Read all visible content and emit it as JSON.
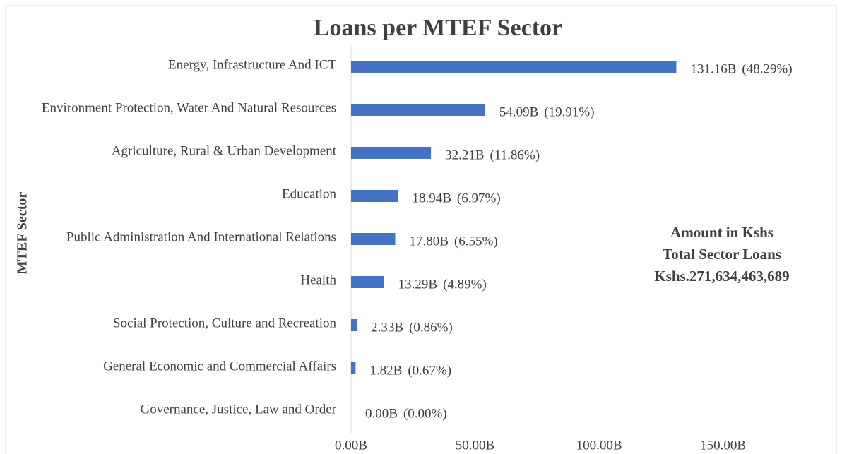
{
  "chart_data": {
    "type": "bar",
    "orientation": "horizontal",
    "title": "Loans per MTEF Sector",
    "y_label": "MTEF Sector",
    "categories": [
      "Energy, Infrastructure And ICT",
      "Environment Protection, Water And Natural Resources",
      "Agriculture, Rural & Urban Development",
      "Education",
      "Public Administration And International Relations",
      "Health",
      "Social Protection, Culture and Recreation",
      "General Economic and Commercial Affairs",
      "Governance, Justice, Law and Order"
    ],
    "values": [
      131.16,
      54.09,
      32.21,
      18.94,
      17.8,
      13.29,
      2.33,
      1.82,
      0.0
    ],
    "value_labels": [
      "131.16B",
      "54.09B",
      "32.21B",
      "18.94B",
      "17.80B",
      "13.29B",
      "2.33B",
      "1.82B",
      "0.00B"
    ],
    "shares": [
      48.29,
      19.91,
      11.86,
      6.97,
      6.55,
      4.89,
      0.86,
      0.67,
      0.0
    ],
    "share_labels": [
      "(48.29%)",
      "(19.91%)",
      "(11.86%)",
      "(6.97%)",
      "(6.55%)",
      "(4.89%)",
      "(0.86%)",
      "(0.67%)",
      "(0.00%)"
    ],
    "color": "#4472c4",
    "xlim": [
      0,
      190
    ],
    "xticks": [
      {
        "value": 0,
        "label": "0.00B"
      },
      {
        "value": 50,
        "label": "50.00B"
      },
      {
        "value": 100,
        "label": "100.00B"
      },
      {
        "value": 150,
        "label": "150.00B"
      }
    ],
    "grid": false,
    "annotation": [
      "Amount in Kshs",
      "Total Sector Loans",
      "Kshs.271,634,463,689"
    ]
  }
}
